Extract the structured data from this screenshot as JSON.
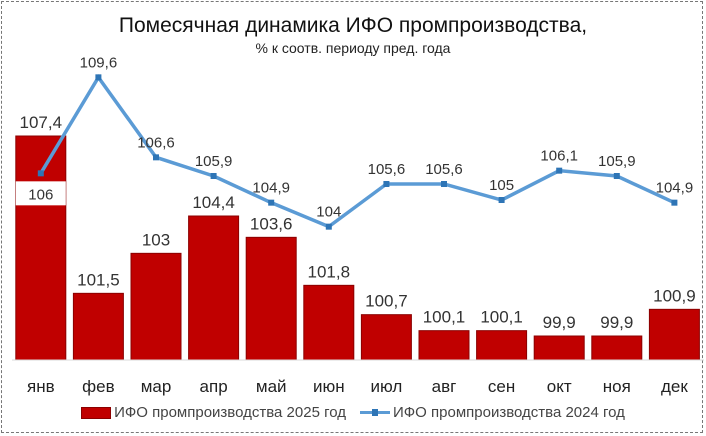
{
  "chart_data": {
    "type": "bar+line",
    "title": "Помесячная динамика ИФО промпроизводства,",
    "subtitle": "% к соотв. периоду пред. года",
    "categories": [
      "янв",
      "фев",
      "мар",
      "апр",
      "май",
      "июн",
      "июл",
      "авг",
      "сен",
      "окт",
      "ноя",
      "дек"
    ],
    "series": [
      {
        "name": "ИФО промпроизводства 2025 год",
        "type": "bar",
        "color": "#c00000",
        "values": [
          107.4,
          101.5,
          103,
          104.4,
          103.6,
          101.8,
          100.7,
          100.1,
          100.1,
          99.9,
          99.9,
          100.9
        ],
        "labels": [
          "107,4",
          "101,5",
          "103",
          "104,4",
          "103,6",
          "101,8",
          "100,7",
          "100,1",
          "100,1",
          "99,9",
          "99,9",
          "100,9"
        ]
      },
      {
        "name": "ИФО промпроизводства 2024 год",
        "type": "line",
        "color": "#5b9bd5",
        "values": [
          106,
          109.6,
          106.6,
          105.9,
          104.9,
          104,
          105.6,
          105.6,
          105,
          106.1,
          105.9,
          104.9
        ],
        "labels": [
          "106",
          "109,6",
          "106,6",
          "105,9",
          "104,9",
          "104",
          "105,6",
          "105,6",
          "105",
          "106,1",
          "105,9",
          "104,9"
        ]
      }
    ],
    "ylim": [
      99,
      111
    ],
    "grid": false,
    "legend": "bottom"
  }
}
